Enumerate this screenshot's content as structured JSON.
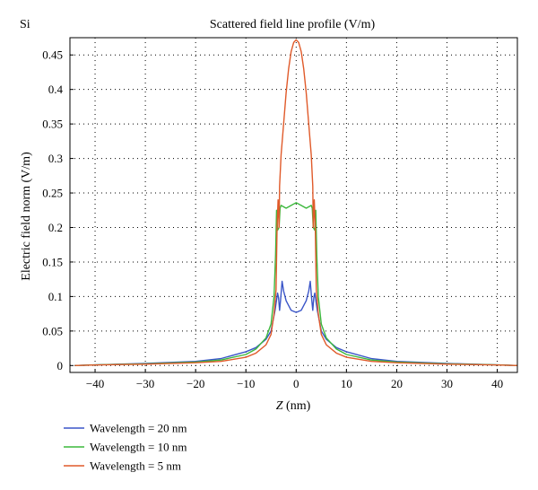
{
  "panel_label": "Si",
  "chart_data": {
    "type": "line",
    "title": "Scattered field line profile (V/m)",
    "xlabel_var": "Z",
    "xlabel_unit": " (nm)",
    "ylabel": "Electric field norm (V/m)",
    "xlim": [
      -45,
      44
    ],
    "ylim": [
      -0.01,
      0.475
    ],
    "x_ticks": [
      -40,
      -30,
      -20,
      -10,
      0,
      10,
      20,
      30,
      40
    ],
    "x_tick_labels": [
      "−40",
      "−30",
      "−20",
      "−10",
      "0",
      "10",
      "20",
      "30",
      "40"
    ],
    "y_ticks": [
      0,
      0.05,
      0.1,
      0.15,
      0.2,
      0.25,
      0.3,
      0.35,
      0.4,
      0.45
    ],
    "y_tick_labels": [
      "0",
      "0.05",
      "0.1",
      "0.15",
      "0.2",
      "0.25",
      "0.3",
      "0.35",
      "0.4",
      "0.45"
    ],
    "grid": true,
    "legend_position": "below",
    "series": [
      {
        "name": "Wavelength = 20 nm",
        "color": "#3a55c8",
        "points": [
          [
            -44,
            0
          ],
          [
            -40,
            0.001
          ],
          [
            -30,
            0.003
          ],
          [
            -20,
            0.006
          ],
          [
            -15,
            0.01
          ],
          [
            -10,
            0.02
          ],
          [
            -8,
            0.026
          ],
          [
            -6,
            0.038
          ],
          [
            -5,
            0.05
          ],
          [
            -4.2,
            0.08
          ],
          [
            -3.7,
            0.105
          ],
          [
            -3.5,
            0.098
          ],
          [
            -3.3,
            0.08
          ],
          [
            -3.1,
            0.095
          ],
          [
            -2.8,
            0.122
          ],
          [
            -2.5,
            0.108
          ],
          [
            -2,
            0.094
          ],
          [
            -1,
            0.08
          ],
          [
            0,
            0.077
          ],
          [
            1,
            0.08
          ],
          [
            2,
            0.094
          ],
          [
            2.5,
            0.108
          ],
          [
            2.8,
            0.122
          ],
          [
            3.1,
            0.095
          ],
          [
            3.3,
            0.08
          ],
          [
            3.5,
            0.098
          ],
          [
            3.7,
            0.105
          ],
          [
            4.2,
            0.08
          ],
          [
            5,
            0.05
          ],
          [
            6,
            0.038
          ],
          [
            8,
            0.026
          ],
          [
            10,
            0.02
          ],
          [
            15,
            0.01
          ],
          [
            20,
            0.006
          ],
          [
            30,
            0.003
          ],
          [
            40,
            0.001
          ],
          [
            44,
            0
          ]
        ]
      },
      {
        "name": "Wavelength = 10 nm",
        "color": "#3cb83c",
        "points": [
          [
            -44,
            0
          ],
          [
            -40,
            0.001
          ],
          [
            -30,
            0.0025
          ],
          [
            -20,
            0.005
          ],
          [
            -15,
            0.008
          ],
          [
            -10,
            0.016
          ],
          [
            -8,
            0.024
          ],
          [
            -6,
            0.04
          ],
          [
            -5,
            0.06
          ],
          [
            -4.4,
            0.1
          ],
          [
            -4.1,
            0.16
          ],
          [
            -3.9,
            0.225
          ],
          [
            -3.7,
            0.196
          ],
          [
            -3.4,
            0.2
          ],
          [
            -3.2,
            0.228
          ],
          [
            -3,
            0.232
          ],
          [
            -2,
            0.228
          ],
          [
            -1,
            0.232
          ],
          [
            0,
            0.236
          ],
          [
            1,
            0.232
          ],
          [
            2,
            0.228
          ],
          [
            3,
            0.232
          ],
          [
            3.2,
            0.228
          ],
          [
            3.4,
            0.2
          ],
          [
            3.7,
            0.196
          ],
          [
            3.9,
            0.225
          ],
          [
            4.1,
            0.16
          ],
          [
            4.4,
            0.1
          ],
          [
            5,
            0.06
          ],
          [
            6,
            0.04
          ],
          [
            8,
            0.024
          ],
          [
            10,
            0.016
          ],
          [
            15,
            0.008
          ],
          [
            20,
            0.005
          ],
          [
            30,
            0.0025
          ],
          [
            40,
            0.001
          ],
          [
            44,
            0
          ]
        ]
      },
      {
        "name": "Wavelength = 5 nm",
        "color": "#e05a2a",
        "points": [
          [
            -44,
            0
          ],
          [
            -40,
            0.0008
          ],
          [
            -30,
            0.002
          ],
          [
            -20,
            0.004
          ],
          [
            -15,
            0.006
          ],
          [
            -10,
            0.012
          ],
          [
            -8,
            0.018
          ],
          [
            -6,
            0.03
          ],
          [
            -5,
            0.045
          ],
          [
            -4.4,
            0.075
          ],
          [
            -4,
            0.11
          ],
          [
            -3.8,
            0.2
          ],
          [
            -3.6,
            0.24
          ],
          [
            -3.4,
            0.2
          ],
          [
            -3.3,
            0.26
          ],
          [
            -3,
            0.305
          ],
          [
            -2.5,
            0.35
          ],
          [
            -2,
            0.395
          ],
          [
            -1.5,
            0.43
          ],
          [
            -1,
            0.455
          ],
          [
            -0.5,
            0.468
          ],
          [
            0,
            0.472
          ],
          [
            0.5,
            0.468
          ],
          [
            1,
            0.455
          ],
          [
            1.5,
            0.43
          ],
          [
            2,
            0.395
          ],
          [
            2.5,
            0.35
          ],
          [
            3,
            0.305
          ],
          [
            3.3,
            0.26
          ],
          [
            3.4,
            0.2
          ],
          [
            3.6,
            0.24
          ],
          [
            3.8,
            0.2
          ],
          [
            4,
            0.11
          ],
          [
            4.4,
            0.075
          ],
          [
            5,
            0.045
          ],
          [
            6,
            0.03
          ],
          [
            8,
            0.018
          ],
          [
            10,
            0.012
          ],
          [
            15,
            0.006
          ],
          [
            20,
            0.004
          ],
          [
            30,
            0.002
          ],
          [
            40,
            0.0008
          ],
          [
            44,
            0
          ]
        ]
      }
    ]
  }
}
